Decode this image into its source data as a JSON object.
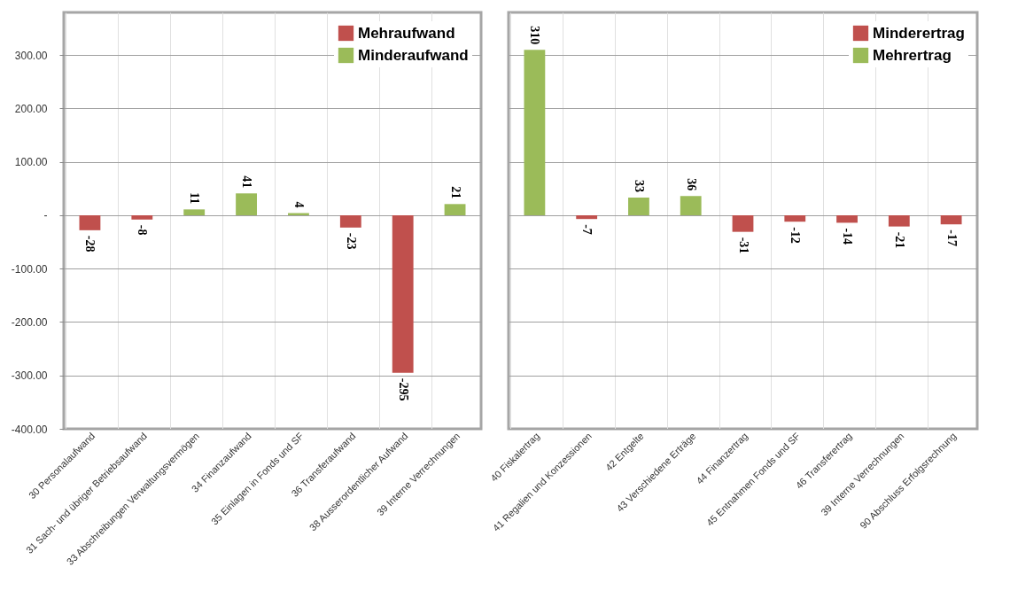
{
  "chart_data": [
    {
      "type": "bar",
      "categories": [
        "30 Personalaufwand",
        "31 Sach- und übriger Betriebsaufwand",
        "33 Abschreibungen Verwaltungsvermögen",
        "34 Finanzaufwand",
        "35 Einlagen in Fonds und SF",
        "36 Transferaufwand",
        "38 Ausserordentlicher Aufwand",
        "39 Interne Verrechnungen"
      ],
      "series": [
        {
          "name": "Mehraufwand",
          "color": "#c0504d",
          "values": [
            -28,
            -8,
            null,
            null,
            null,
            -23,
            -295,
            null
          ]
        },
        {
          "name": "Minderaufwand",
          "color": "#9bbb59",
          "values": [
            null,
            null,
            11,
            41,
            4,
            null,
            null,
            21
          ]
        }
      ],
      "stacked": true,
      "ylim": [
        -400,
        380
      ],
      "yticks": [
        {
          "value": -400,
          "label": "-400.00"
        },
        {
          "value": -300,
          "label": "-300.00"
        },
        {
          "value": -200,
          "label": "-200.00"
        },
        {
          "value": -100,
          "label": "-100.00"
        },
        {
          "value": 0,
          "label": "-"
        },
        {
          "value": 100,
          "label": "100.00"
        },
        {
          "value": 200,
          "label": "200.00"
        },
        {
          "value": 300,
          "label": "300.00"
        }
      ],
      "grid": true,
      "legend": "top right",
      "data_labels": true
    },
    {
      "type": "bar",
      "categories": [
        "40 Fiskalertrag",
        "41 Regalien und Konzessionen",
        "42 Entgelte",
        "43 Verschiedene Erträge",
        "44 Finanzertrag",
        "45 Entnahmen Fonds und SF",
        "46 Transferertrag",
        "39 Interne Verrechnungen",
        "90 Abschluss Erfolgsrechnung"
      ],
      "series": [
        {
          "name": "Minderertrag",
          "color": "#c0504d",
          "values": [
            null,
            -7,
            null,
            null,
            -31,
            -12,
            -14,
            -21,
            -17
          ]
        },
        {
          "name": "Mehrertrag",
          "color": "#9bbb59",
          "values": [
            310,
            null,
            33,
            36,
            null,
            null,
            null,
            null,
            null
          ]
        }
      ],
      "stacked": true,
      "ylim": [
        -400,
        380
      ],
      "yticks": [
        -400,
        -300,
        -200,
        -100,
        0,
        100,
        200,
        300
      ],
      "grid": true,
      "legend": "top right",
      "data_labels": true,
      "tick_labels": "x"
    }
  ]
}
